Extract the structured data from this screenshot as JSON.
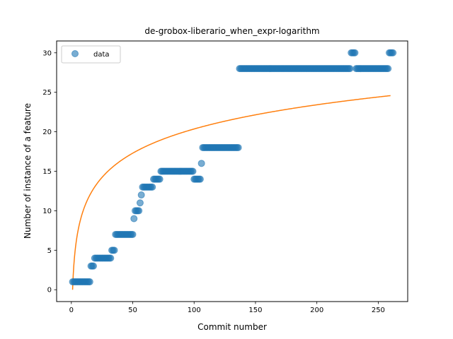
{
  "chart_data": {
    "type": "scatter",
    "title": "de-grobox-liberario_when_expr-logarithm",
    "xlabel": "Commit number",
    "ylabel": "Number of instance of a feature",
    "xlim": [
      -12,
      274
    ],
    "ylim": [
      -1.5,
      31.5
    ],
    "xticks": [
      0,
      50,
      100,
      150,
      200,
      250
    ],
    "yticks": [
      0,
      5,
      10,
      15,
      20,
      25,
      30
    ],
    "grid": false,
    "legend_position": "top-left",
    "series": [
      {
        "name": "data",
        "kind": "scatter",
        "color": "#1f77b4",
        "segments": [
          {
            "x_start": 1,
            "x_end": 15,
            "y": 1
          },
          {
            "x_start": 16,
            "x_end": 18,
            "y": 3
          },
          {
            "x_start": 19,
            "x_end": 32,
            "y": 4
          },
          {
            "x_start": 33,
            "x_end": 35,
            "y": 5
          },
          {
            "x_start": 36,
            "x_end": 50,
            "y": 7
          },
          {
            "x_start": 51,
            "x_end": 51,
            "y": 9
          },
          {
            "x_start": 52,
            "x_end": 55,
            "y": 10
          },
          {
            "x_start": 56,
            "x_end": 56,
            "y": 11
          },
          {
            "x_start": 57,
            "x_end": 57,
            "y": 12
          },
          {
            "x_start": 58,
            "x_end": 66,
            "y": 13
          },
          {
            "x_start": 67,
            "x_end": 72,
            "y": 14
          },
          {
            "x_start": 73,
            "x_end": 99,
            "y": 15
          },
          {
            "x_start": 100,
            "x_end": 105,
            "y": 14
          },
          {
            "x_start": 106,
            "x_end": 106,
            "y": 16
          },
          {
            "x_start": 107,
            "x_end": 136,
            "y": 18
          },
          {
            "x_start": 137,
            "x_end": 227,
            "y": 28
          },
          {
            "x_start": 228,
            "x_end": 231,
            "y": 30
          },
          {
            "x_start": 232,
            "x_end": 258,
            "y": 28
          },
          {
            "x_start": 259,
            "x_end": 262,
            "y": 30
          }
        ]
      },
      {
        "name": "",
        "kind": "line",
        "color": "#ff7f0e",
        "model": "logarithmic",
        "coefficients": {
          "a": 4.42,
          "b": 0
        },
        "x_range": [
          1,
          260
        ]
      }
    ]
  }
}
